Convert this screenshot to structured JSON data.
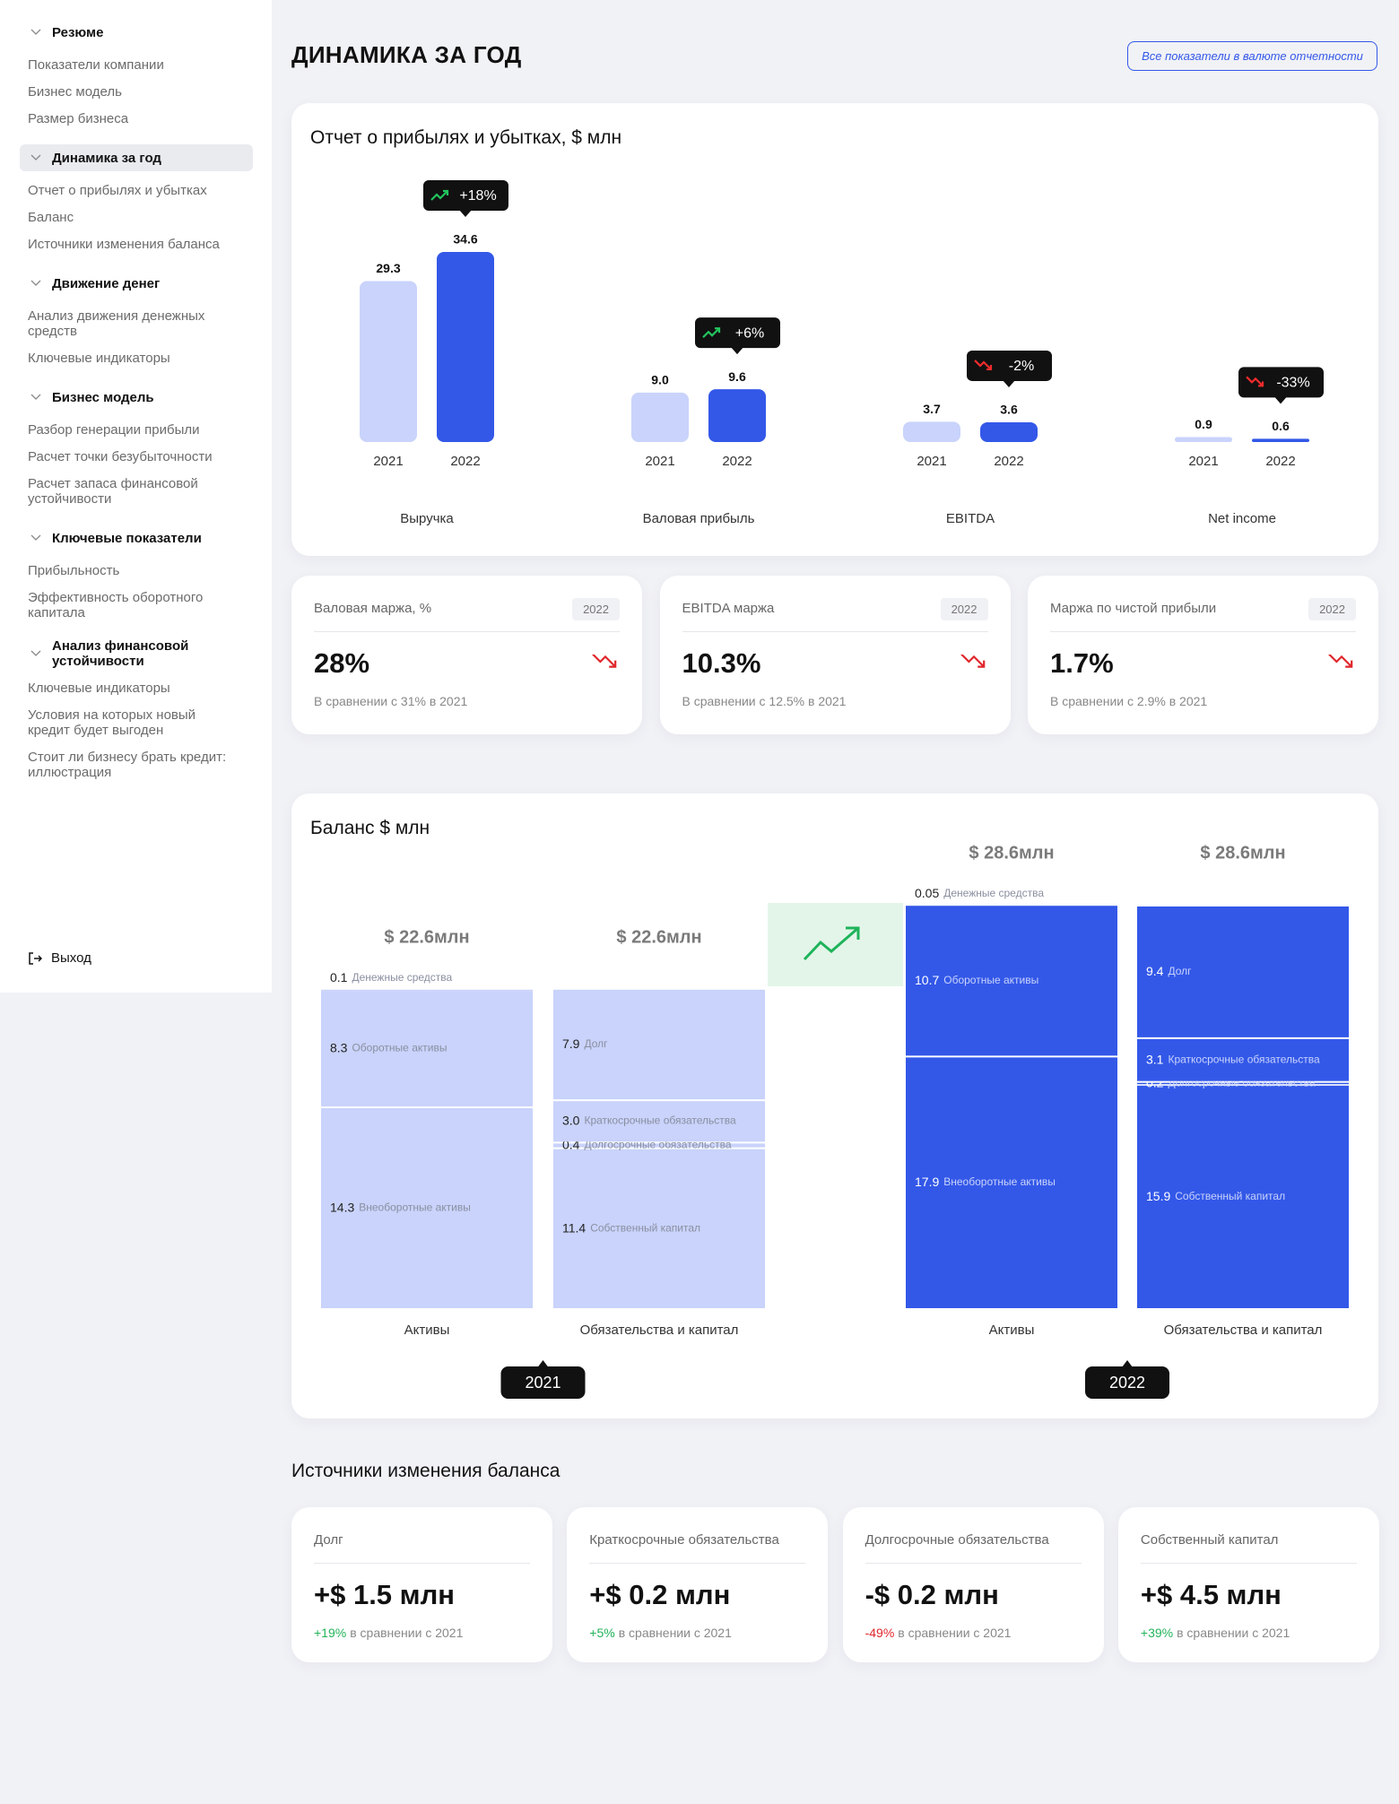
{
  "sidebar": {
    "sections": [
      {
        "title": "Резюме",
        "items": [
          "Показатели компании",
          "Бизнес модель",
          "Размер бизнеса"
        ]
      },
      {
        "title": "Динамика за год",
        "items": [
          "Отчет о прибылях и убытках",
          "Баланс",
          "Источники изменения баланса"
        ]
      },
      {
        "title": "Движение денег",
        "items": [
          "Анализ движения денежных средств",
          "Ключевые индикаторы"
        ]
      },
      {
        "title": "Бизнес модель",
        "items": [
          "Разбор генерации прибыли",
          "Расчет точки безубыточности",
          "Расчет  запаса финансовой устойчивости"
        ]
      },
      {
        "title": "Ключевые показатели",
        "items": [
          "Прибыльность",
          "Эффективность оборотного капитала"
        ]
      },
      {
        "title": "Анализ финансовой устойчивости",
        "items": [
          "Ключевые индикаторы",
          "Условия на которых новый кредит будет выгоден",
          "Стоит ли бизнесу брать кредит: иллюстрация"
        ]
      }
    ],
    "logout": "Выход"
  },
  "header": {
    "title": "ДИНАМИКА ЗА ГОД",
    "note": "Все показатели в валюте отчетности"
  },
  "chart_data": [
    {
      "type": "bar",
      "title": "Отчет о прибылях и убытках, $ млн",
      "categories": [
        "Выручка",
        "Валовая прибыль",
        "EBITDA",
        "Net income"
      ],
      "series": [
        {
          "name": "2021",
          "color": "#c9d3fb",
          "values": [
            29.3,
            9.0,
            3.7,
            0.9
          ],
          "value_labels": [
            "29.3",
            "9.0",
            "3.7",
            "0.9"
          ]
        },
        {
          "name": "2022",
          "color": "#3358e8",
          "values": [
            34.6,
            9.6,
            3.6,
            0.6
          ],
          "value_labels": [
            "34.6",
            "9.6",
            "3.6",
            "0.6"
          ]
        }
      ],
      "change_labels": [
        "+18%",
        "+6%",
        "-2%",
        "-33%"
      ]
    },
    {
      "type": "stacked_bar",
      "title": "Баланс $ млн",
      "groups": [
        {
          "name": "2021",
          "color": "#c9d3fb",
          "columns": [
            {
              "name": "Активы",
              "total": 22.6,
              "total_label": "$ 22.6млн",
              "segments": [
                {
                  "name": "Денежные средства",
                  "value": 0.1,
                  "label": "0.1"
                },
                {
                  "name": "Оборотные активы",
                  "value": 8.3,
                  "label": "8.3"
                },
                {
                  "name": "Внеоборотные активы",
                  "value": 14.3,
                  "label": "14.3"
                }
              ]
            },
            {
              "name": "Обязательства и капитал",
              "total": 22.6,
              "total_label": "$ 22.6млн",
              "segments": [
                {
                  "name": "Долг",
                  "value": 7.9,
                  "label": "7.9"
                },
                {
                  "name": "Краткосрочные обязательства",
                  "value": 3.0,
                  "label": "3.0"
                },
                {
                  "name": "Долгосрочные обязательства",
                  "value": 0.4,
                  "label": "0.4"
                },
                {
                  "name": "Собственный капитал",
                  "value": 11.4,
                  "label": "11.4"
                }
              ]
            }
          ]
        },
        {
          "name": "2022",
          "color": "#3358e8",
          "columns": [
            {
              "name": "Активы",
              "total": 28.6,
              "total_label": "$ 28.6млн",
              "segments": [
                {
                  "name": "Денежные средства",
                  "value": 0.05,
                  "label": "0.05"
                },
                {
                  "name": "Оборотные активы",
                  "value": 10.7,
                  "label": "10.7"
                },
                {
                  "name": "Внеоборотные активы",
                  "value": 17.9,
                  "label": "17.9"
                }
              ]
            },
            {
              "name": "Обязательства и капитал",
              "total": 28.6,
              "total_label": "$ 28.6млн",
              "segments": [
                {
                  "name": "Долг",
                  "value": 9.4,
                  "label": "9.4"
                },
                {
                  "name": "Краткосрочные обязательства",
                  "value": 3.1,
                  "label": "3.1"
                },
                {
                  "name": "Долгосрочные обязательства",
                  "value": 0.2,
                  "label": "0.2"
                },
                {
                  "name": "Собственный капитал",
                  "value": 15.9,
                  "label": "15.9"
                }
              ]
            }
          ]
        }
      ]
    }
  ],
  "kpis": [
    {
      "title": "Валовая маржа, %",
      "year": "2022",
      "value": "28%",
      "comparison": "В сравнении с 31% в 2021"
    },
    {
      "title": "EBITDA маржа",
      "year": "2022",
      "value": "10.3%",
      "comparison": "В сравнении с 12.5% в 2021"
    },
    {
      "title": "Маржа по чистой прибыли",
      "year": "2022",
      "value": "1.7%",
      "comparison": "В сравнении с 2.9% в 2021"
    }
  ],
  "sources": {
    "title": "Источники изменения баланса",
    "cards": [
      {
        "title": "Долг",
        "value": "+$ 1.5 млн",
        "change": "+19%",
        "note": "в сравнении с  2021"
      },
      {
        "title": "Краткосрочные обязательства",
        "value": "+$ 0.2 млн",
        "change": "+5%",
        "note": "в сравнении с  2021"
      },
      {
        "title": "Долгосрочные обязательства",
        "value": "-$ 0.2 млн",
        "change": "-49%",
        "note": "в сравнении с  2021"
      },
      {
        "title": "Собственный капитал",
        "value": "+$ 4.5 млн",
        "change": "+39%",
        "note": "в сравнении с  2021"
      }
    ]
  }
}
